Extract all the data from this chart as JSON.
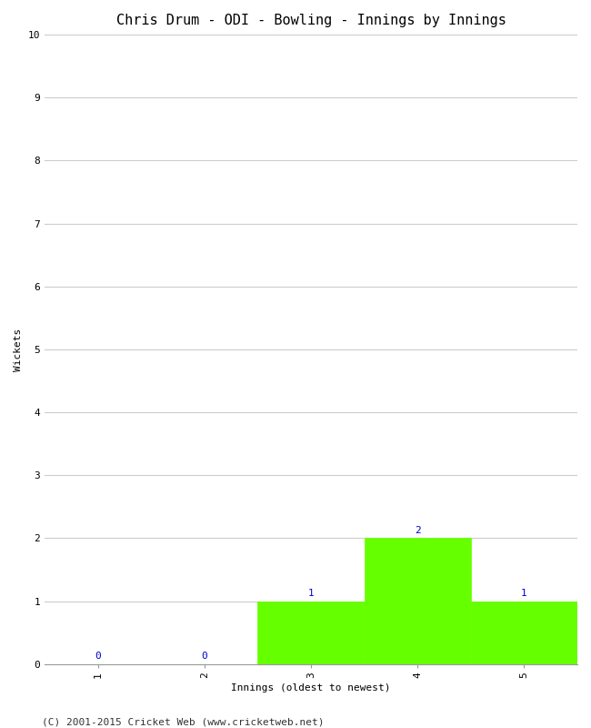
{
  "title": "Chris Drum - ODI - Bowling - Innings by Innings",
  "xlabel": "Innings (oldest to newest)",
  "ylabel": "Wickets",
  "categories": [
    1,
    2,
    3,
    4,
    5
  ],
  "values": [
    0,
    0,
    1,
    2,
    1
  ],
  "bar_color": "#66ff00",
  "bar_edge_color": "#66ff00",
  "ylim": [
    0,
    10
  ],
  "yticks": [
    0,
    1,
    2,
    3,
    4,
    5,
    6,
    7,
    8,
    9,
    10
  ],
  "background_color": "#ffffff",
  "grid_color": "#cccccc",
  "annotation_color": "#0000cc",
  "footer": "(C) 2001-2015 Cricket Web (www.cricketweb.net)",
  "title_fontsize": 11,
  "label_fontsize": 8,
  "tick_fontsize": 8,
  "annotation_fontsize": 8,
  "footer_fontsize": 8
}
